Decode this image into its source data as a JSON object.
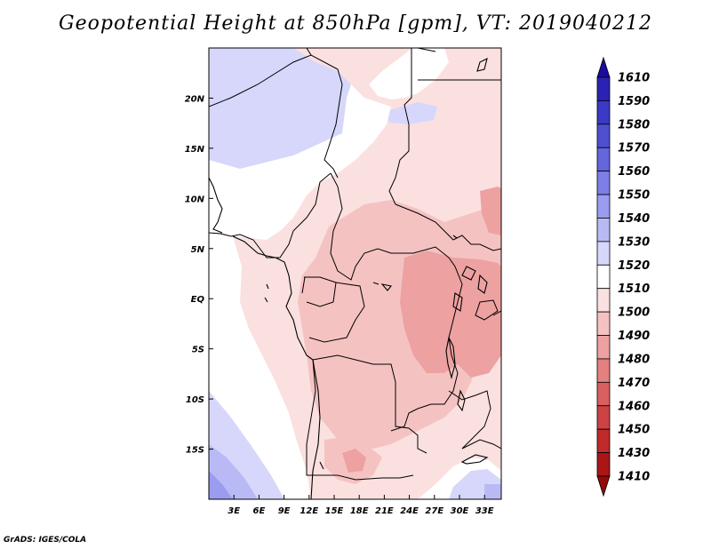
{
  "title": "Geopotential Height at 850hPa [gpm], VT: 2019040212",
  "credit": "GrADS: IGES/COLA",
  "map": {
    "lon_range": [
      0,
      35
    ],
    "lat_range": [
      -20,
      25
    ],
    "lon_ticks": [
      "3E",
      "6E",
      "9E",
      "12E",
      "15E",
      "18E",
      "21E",
      "24E",
      "27E",
      "30E",
      "33E"
    ],
    "lat_ticks": [
      "20N",
      "15N",
      "10N",
      "5N",
      "EQ",
      "5S",
      "10S",
      "15S"
    ]
  },
  "colorbar": {
    "levels": [
      "1610",
      "1590",
      "1580",
      "1570",
      "1560",
      "1550",
      "1540",
      "1530",
      "1520",
      "1510",
      "1500",
      "1490",
      "1480",
      "1470",
      "1460",
      "1450",
      "1430",
      "1410"
    ],
    "colors": [
      "#1a0aa0",
      "#2a22b4",
      "#3a3ac4",
      "#4f50d0",
      "#6466dc",
      "#7d7fe6",
      "#9a9cef",
      "#b9baf5",
      "#d6d7fb",
      "#ffffff",
      "#fbe0e0",
      "#f5c2c2",
      "#eda1a1",
      "#e38080",
      "#d96060",
      "#cd4242",
      "#bf2a2a",
      "#aa1616",
      "#930a0a"
    ]
  }
}
